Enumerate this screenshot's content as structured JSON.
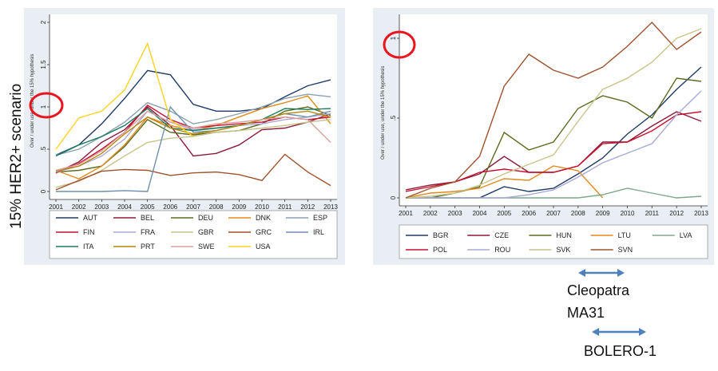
{
  "side_label": "15% HER2+ scenario",
  "annotations": [
    {
      "text": "Cleopatra"
    },
    {
      "text": "MA31"
    },
    {
      "text": "BOLERO-1"
    }
  ],
  "colors": {
    "panel_bg": "#e8eef3",
    "highlight_circle": "#e8141e",
    "arrow": "#4f81bd"
  },
  "chart_data": [
    {
      "type": "line",
      "title": "",
      "xlabel": "",
      "ylabel": "Over / under use, under the 15% hypothesis",
      "x": [
        2001,
        2002,
        2003,
        2004,
        2005,
        2006,
        2007,
        2008,
        2009,
        2010,
        2011,
        2012,
        2013
      ],
      "ylim": [
        0,
        2
      ],
      "yticks": [
        0,
        0.5,
        1,
        1.5,
        2
      ],
      "ytick_labels": [
        "0",
        ".5",
        "1",
        "1.5",
        "2"
      ],
      "legend_position": "bottom",
      "legend_columns": 5,
      "grid": false,
      "series": [
        {
          "name": "AUT",
          "color": "#1f3b66",
          "values": [
            0.43,
            0.55,
            0.8,
            1.1,
            1.43,
            1.38,
            1.03,
            0.95,
            0.95,
            0.98,
            1.12,
            1.25,
            1.32
          ]
        },
        {
          "name": "BEL",
          "color": "#8b1a3a",
          "values": [
            0.22,
            0.35,
            0.58,
            0.73,
            1.0,
            0.78,
            0.42,
            0.45,
            0.55,
            0.73,
            0.75,
            0.82,
            0.92
          ]
        },
        {
          "name": "DEU",
          "color": "#5a6b1f",
          "values": [
            0.23,
            0.25,
            0.3,
            0.53,
            0.85,
            0.7,
            0.67,
            0.7,
            0.72,
            0.8,
            0.95,
            1.0,
            0.9
          ]
        },
        {
          "name": "DNK",
          "color": "#e08a1e",
          "values": [
            0.25,
            0.15,
            0.3,
            0.55,
            0.88,
            0.78,
            0.72,
            0.78,
            0.88,
            0.98,
            1.05,
            1.13,
            0.8
          ]
        },
        {
          "name": "ESP",
          "color": "#8aa0b0",
          "values": [
            0.43,
            0.5,
            0.65,
            0.82,
            1.05,
            0.95,
            0.8,
            0.85,
            0.92,
            1.0,
            1.1,
            1.15,
            1.12
          ]
        },
        {
          "name": "FIN",
          "color": "#c8102e",
          "values": [
            0.22,
            0.33,
            0.5,
            0.7,
            1.02,
            0.85,
            0.75,
            0.78,
            0.8,
            0.82,
            0.88,
            0.85,
            0.88
          ]
        },
        {
          "name": "FRA",
          "color": "#a9a9d6",
          "values": [
            0.23,
            0.3,
            0.42,
            0.62,
            0.95,
            0.82,
            0.73,
            0.75,
            0.78,
            0.8,
            0.85,
            0.88,
            0.92
          ]
        },
        {
          "name": "GBR",
          "color": "#c8c48a",
          "values": [
            0.05,
            0.12,
            0.25,
            0.42,
            0.58,
            0.63,
            0.65,
            0.7,
            0.72,
            0.75,
            0.78,
            0.82,
            0.85
          ]
        },
        {
          "name": "GRC",
          "color": "#a0522d",
          "values": [
            0.02,
            0.13,
            0.24,
            0.26,
            0.25,
            0.19,
            0.22,
            0.23,
            0.2,
            0.13,
            0.44,
            0.23,
            0.07
          ]
        },
        {
          "name": "IRL",
          "color": "#6e8fae",
          "values": [
            0.0,
            0.0,
            0.0,
            0.01,
            0.0,
            1.0,
            0.7,
            0.72,
            0.78,
            0.85,
            0.92,
            0.88,
            0.95
          ]
        },
        {
          "name": "ITA",
          "color": "#1a7a5e",
          "values": [
            0.42,
            0.55,
            0.65,
            0.78,
            0.98,
            0.75,
            0.72,
            0.75,
            0.78,
            0.85,
            0.98,
            0.97,
            0.98
          ]
        },
        {
          "name": "PRT",
          "color": "#b8860b",
          "values": [
            0.24,
            0.3,
            0.45,
            0.68,
            0.88,
            0.75,
            0.68,
            0.72,
            0.78,
            0.85,
            0.92,
            0.95,
            0.88
          ]
        },
        {
          "name": "SWE",
          "color": "#d9a0a0",
          "values": [
            0.25,
            0.32,
            0.48,
            0.7,
            0.95,
            0.82,
            0.75,
            0.8,
            0.82,
            0.85,
            0.88,
            0.85,
            0.58
          ]
        },
        {
          "name": "USA",
          "color": "#ffd21f",
          "values": [
            0.5,
            0.87,
            0.95,
            1.2,
            1.75,
            0.85,
            0.65,
            null,
            null,
            null,
            null,
            null,
            null
          ]
        }
      ]
    },
    {
      "type": "line",
      "title": "",
      "xlabel": "",
      "ylabel": "Over / under use, under the 15% hypothesis",
      "x": [
        2001,
        2002,
        2003,
        2004,
        2005,
        2006,
        2007,
        2008,
        2009,
        2010,
        2011,
        2012,
        2013
      ],
      "ylim": [
        0,
        1.1
      ],
      "yticks": [
        0,
        0.5,
        1
      ],
      "ytick_labels": [
        "0",
        ".5",
        "1"
      ],
      "legend_position": "bottom",
      "legend_columns": 5,
      "grid": false,
      "series": [
        {
          "name": "BGR",
          "color": "#1f3b66",
          "values": [
            0.0,
            0.0,
            0.0,
            0.0,
            0.07,
            0.04,
            0.06,
            0.15,
            0.25,
            0.4,
            0.52,
            0.68,
            0.82
          ]
        },
        {
          "name": "CZE",
          "color": "#8b1a3a",
          "values": [
            0.05,
            0.08,
            0.1,
            0.15,
            0.26,
            0.16,
            0.16,
            0.2,
            0.35,
            0.35,
            0.45,
            0.54,
            0.48
          ]
        },
        {
          "name": "HUN",
          "color": "#5a6b1f",
          "values": [
            0.0,
            0.0,
            0.03,
            0.07,
            0.41,
            0.3,
            0.35,
            0.56,
            0.64,
            0.6,
            0.5,
            0.75,
            0.73
          ]
        },
        {
          "name": "LTU",
          "color": "#e08a1e",
          "values": [
            0.0,
            0.03,
            0.04,
            0.06,
            0.12,
            0.11,
            0.2,
            0.17,
            0.0,
            null,
            null,
            null,
            null
          ]
        },
        {
          "name": "LVA",
          "color": "#7fa88f",
          "values": [
            0.0,
            0.0,
            0.0,
            0.0,
            0.0,
            0.0,
            0.0,
            0.0,
            0.02,
            0.06,
            0.03,
            0.0,
            0.01
          ]
        },
        {
          "name": "POL",
          "color": "#c8102e",
          "values": [
            0.04,
            0.07,
            0.1,
            0.16,
            0.18,
            0.16,
            0.16,
            0.2,
            0.34,
            0.35,
            0.42,
            0.52,
            0.54
          ]
        },
        {
          "name": "ROU",
          "color": "#a9a9d6",
          "values": [
            0.0,
            0.0,
            0.0,
            0.0,
            0.0,
            0.02,
            0.05,
            0.13,
            0.22,
            0.28,
            0.34,
            0.52,
            0.67
          ]
        },
        {
          "name": "SVK",
          "color": "#c8c48a",
          "values": [
            0.0,
            0.01,
            0.03,
            0.08,
            0.15,
            0.21,
            0.27,
            0.48,
            0.68,
            0.75,
            0.85,
            1.0,
            1.06
          ]
        },
        {
          "name": "SVN",
          "color": "#a0522d",
          "values": [
            0.0,
            0.06,
            0.1,
            0.26,
            0.7,
            0.9,
            0.8,
            0.75,
            0.82,
            0.95,
            1.1,
            0.93,
            1.04
          ]
        }
      ]
    }
  ]
}
